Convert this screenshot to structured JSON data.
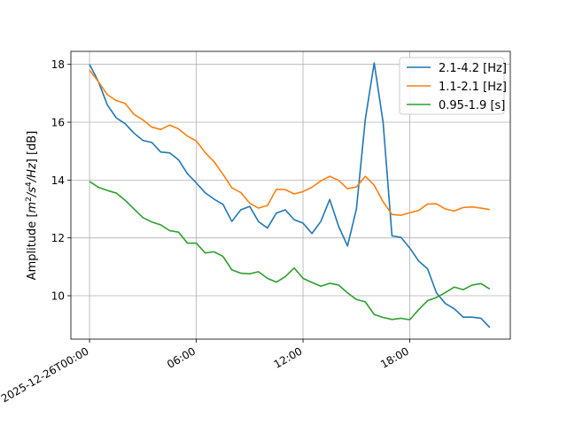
{
  "chart_data": {
    "type": "line",
    "title": "",
    "xlabel": "",
    "ylabel_parts": {
      "prefix": "Amplitude [",
      "m": "m",
      "exp2": "2",
      "slash_s": "/s",
      "exp4": "4",
      "hz": "/Hz",
      "suffix": "] [dB]"
    },
    "x_ticks": [
      {
        "hour": 0,
        "label": "2025-12-26T00:00"
      },
      {
        "hour": 6,
        "label": "06:00"
      },
      {
        "hour": 12,
        "label": "12:00"
      },
      {
        "hour": 18,
        "label": "18:00"
      }
    ],
    "xlim_hours": [
      -1.05,
      23.65
    ],
    "ylim": [
      8.5,
      18.45
    ],
    "y_ticks": [
      10,
      12,
      14,
      16,
      18
    ],
    "grid": true,
    "legend_position": "top-right",
    "x_hours": [
      0,
      0.5,
      1,
      1.5,
      2,
      2.5,
      3,
      3.5,
      4,
      4.5,
      5,
      5.5,
      6,
      6.5,
      7,
      7.5,
      8,
      8.5,
      9,
      9.5,
      10,
      10.5,
      11,
      11.5,
      12,
      12.5,
      13,
      13.5,
      14,
      14.5,
      15,
      15.5,
      16,
      16.5,
      17,
      17.5,
      18,
      18.5,
      19,
      19.5,
      20,
      20.5,
      21,
      21.5,
      22,
      22.5
    ],
    "series": [
      {
        "name": "2.1-4.2 [Hz]",
        "color": "#1f77b4",
        "values": [
          18.0,
          17.4,
          16.6,
          16.15,
          15.95,
          15.62,
          15.37,
          15.3,
          14.97,
          14.94,
          14.7,
          14.22,
          13.9,
          13.56,
          13.34,
          13.16,
          12.57,
          12.97,
          13.09,
          12.56,
          12.34,
          12.86,
          12.97,
          12.63,
          12.51,
          12.15,
          12.57,
          13.33,
          12.4,
          11.72,
          13.0,
          16.1,
          18.05,
          16.0,
          12.07,
          12.02,
          11.65,
          11.2,
          10.93,
          10.1,
          9.73,
          9.55,
          9.26,
          9.26,
          9.22,
          8.9
        ]
      },
      {
        "name": "1.1-2.1 [Hz]",
        "color": "#ff7f0e",
        "values": [
          17.8,
          17.4,
          16.95,
          16.75,
          16.65,
          16.27,
          16.08,
          15.83,
          15.75,
          15.9,
          15.77,
          15.52,
          15.35,
          14.95,
          14.63,
          14.2,
          13.73,
          13.57,
          13.2,
          13.03,
          13.12,
          13.68,
          13.67,
          13.52,
          13.6,
          13.75,
          13.97,
          14.13,
          13.99,
          13.7,
          13.76,
          14.13,
          13.82,
          13.25,
          12.81,
          12.78,
          12.87,
          12.95,
          13.17,
          13.18,
          13.0,
          12.93,
          13.05,
          13.07,
          13.03,
          12.98
        ]
      },
      {
        "name": "0.95-1.9 [s]",
        "color": "#2ca02c",
        "values": [
          13.95,
          13.75,
          13.64,
          13.55,
          13.3,
          13.0,
          12.7,
          12.55,
          12.45,
          12.25,
          12.2,
          11.82,
          11.82,
          11.48,
          11.52,
          11.36,
          10.89,
          10.78,
          10.76,
          10.83,
          10.6,
          10.47,
          10.66,
          10.96,
          10.6,
          10.46,
          10.33,
          10.43,
          10.37,
          10.1,
          9.87,
          9.79,
          9.35,
          9.25,
          9.18,
          9.22,
          9.17,
          9.52,
          9.83,
          9.94,
          10.11,
          10.3,
          10.21,
          10.37,
          10.42,
          10.23
        ]
      }
    ]
  }
}
